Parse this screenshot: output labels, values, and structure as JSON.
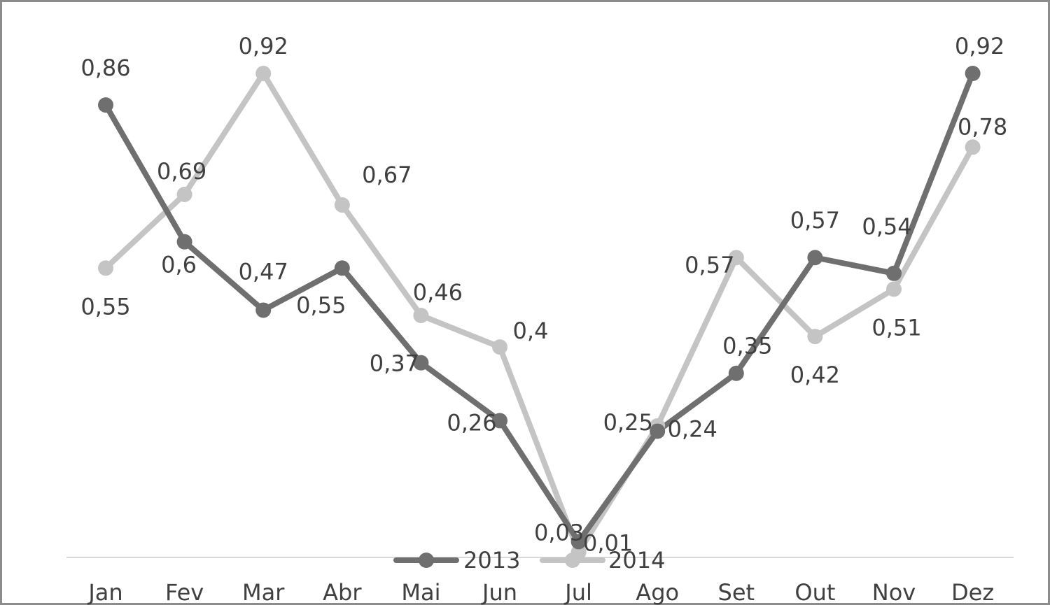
{
  "chart_data": {
    "type": "line",
    "categories": [
      "Jan",
      "Fev",
      "Mar",
      "Abr",
      "Mai",
      "Jun",
      "Jul",
      "Ago",
      "Set",
      "Out",
      "Nov",
      "Dez"
    ],
    "series": [
      {
        "name": "2013",
        "color": "#6f6f6f",
        "values": [
          0.86,
          0.6,
          0.47,
          0.55,
          0.37,
          0.26,
          0.03,
          0.24,
          0.35,
          0.57,
          0.54,
          0.92
        ],
        "labels": [
          "0,86",
          "0,6",
          "0,47",
          "0,55",
          "0,37",
          "0,26",
          "0,03",
          "0,24",
          "0,35",
          "0,57",
          "0,54",
          "0,92"
        ]
      },
      {
        "name": "2014",
        "color": "#c4c4c4",
        "values": [
          0.55,
          0.69,
          0.92,
          0.67,
          0.46,
          0.4,
          0.01,
          0.25,
          0.57,
          0.42,
          0.51,
          0.78
        ],
        "labels": [
          "0,55",
          "0,69",
          "0,92",
          "0,67",
          "0,46",
          "0,4",
          "0,01",
          "0,25",
          "0,57",
          "0,42",
          "0,51",
          "0,78"
        ]
      }
    ],
    "ylim": [
      0,
      0.92
    ],
    "grid": false,
    "legend_position": "bottom"
  }
}
